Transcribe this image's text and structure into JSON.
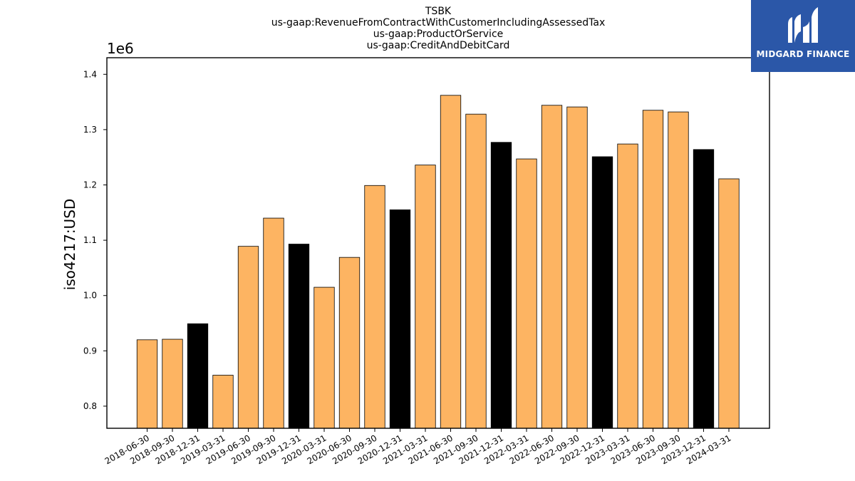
{
  "chart_data": {
    "type": "bar",
    "title_lines": [
      "TSBK",
      "us-gaap:RevenueFromContractWithCustomerIncludingAssessedTax",
      "us-gaap:ProductOrService",
      "us-gaap:CreditAndDebitCard"
    ],
    "ylabel": "iso4217:USD",
    "y_offset_label": "1e6",
    "ylim": [
      0.76,
      1.43
    ],
    "yticks": [
      0.8,
      0.9,
      1.0,
      1.1,
      1.2,
      1.3,
      1.4
    ],
    "ytick_labels": [
      "0.8",
      "0.9",
      "1.0",
      "1.1",
      "1.2",
      "1.3",
      "1.4"
    ],
    "categories": [
      "2018-06-30",
      "2018-09-30",
      "2018-12-31",
      "2019-03-31",
      "2019-06-30",
      "2019-09-30",
      "2019-12-31",
      "2020-03-31",
      "2020-06-30",
      "2020-09-30",
      "2020-12-31",
      "2021-03-31",
      "2021-06-30",
      "2021-09-30",
      "2021-12-31",
      "2022-03-31",
      "2022-06-30",
      "2022-09-30",
      "2022-12-31",
      "2023-03-31",
      "2023-06-30",
      "2023-09-30",
      "2023-12-31",
      "2024-03-31"
    ],
    "values": [
      0.92,
      0.921,
      0.949,
      0.856,
      1.089,
      1.14,
      1.093,
      1.015,
      1.069,
      1.199,
      1.155,
      1.236,
      1.362,
      1.328,
      1.277,
      1.247,
      1.344,
      1.341,
      1.251,
      1.274,
      1.335,
      1.332,
      1.264,
      1.211
    ],
    "bar_colors": [
      "#fdb462",
      "#fdb462",
      "#000000",
      "#fdb462",
      "#fdb462",
      "#fdb462",
      "#000000",
      "#fdb462",
      "#fdb462",
      "#fdb462",
      "#000000",
      "#fdb462",
      "#fdb462",
      "#fdb462",
      "#000000",
      "#fdb462",
      "#fdb462",
      "#fdb462",
      "#000000",
      "#fdb462",
      "#fdb462",
      "#fdb462",
      "#000000",
      "#fdb462"
    ],
    "grid": false,
    "legend": "none"
  },
  "logo": {
    "text": "MIDGARD FINANCE",
    "background": "#2b57a8"
  }
}
